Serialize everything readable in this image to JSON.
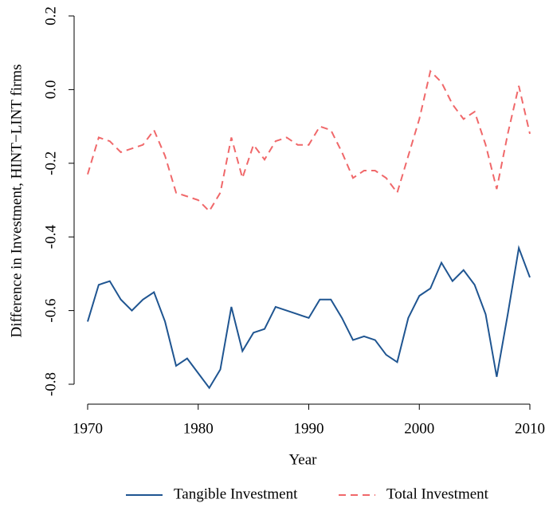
{
  "chart_data": {
    "type": "line",
    "x_label": "Year",
    "y_label": "Difference in Investment, HINT−LINT firms",
    "x": [
      1970,
      1971,
      1972,
      1973,
      1974,
      1975,
      1976,
      1977,
      1978,
      1979,
      1980,
      1981,
      1982,
      1983,
      1984,
      1985,
      1986,
      1987,
      1988,
      1989,
      1990,
      1991,
      1992,
      1993,
      1994,
      1995,
      1996,
      1997,
      1998,
      1999,
      2000,
      2001,
      2002,
      2003,
      2004,
      2005,
      2006,
      2007,
      2008,
      2009,
      2010
    ],
    "series": [
      {
        "name": "Tangible Investment",
        "color": "#1f5591",
        "dash": "solid",
        "values": [
          -0.63,
          -0.53,
          -0.52,
          -0.57,
          -0.6,
          -0.57,
          -0.55,
          -0.63,
          -0.75,
          -0.73,
          -0.77,
          -0.81,
          -0.76,
          -0.59,
          -0.71,
          -0.66,
          -0.65,
          -0.59,
          -0.6,
          -0.61,
          -0.62,
          -0.57,
          -0.57,
          -0.62,
          -0.68,
          -0.67,
          -0.68,
          -0.72,
          -0.74,
          -0.62,
          -0.56,
          -0.54,
          -0.47,
          -0.52,
          -0.49,
          -0.53,
          -0.61,
          -0.78,
          -0.61,
          -0.43,
          -0.51
        ]
      },
      {
        "name": "Total Investment",
        "color": "#f0686a",
        "dash": "dashed",
        "values": [
          -0.23,
          -0.13,
          -0.14,
          -0.17,
          -0.16,
          -0.15,
          -0.11,
          -0.18,
          -0.28,
          -0.29,
          -0.3,
          -0.33,
          -0.28,
          -0.13,
          -0.24,
          -0.15,
          -0.19,
          -0.14,
          -0.13,
          -0.15,
          -0.15,
          -0.1,
          -0.11,
          -0.17,
          -0.24,
          -0.22,
          -0.22,
          -0.24,
          -0.28,
          -0.18,
          -0.08,
          0.05,
          0.02,
          -0.04,
          -0.08,
          -0.06,
          -0.15,
          -0.27,
          -0.12,
          0.01,
          -0.12
        ]
      }
    ],
    "xlim": [
      1970,
      2010
    ],
    "xticks": [
      1970,
      1980,
      1990,
      2000,
      2010
    ],
    "ylim": [
      -0.8,
      0.2
    ],
    "yticks": [
      -0.8,
      -0.6,
      -0.4,
      -0.2,
      {
        "value": 0,
        "label": "0.0"
      },
      0.2
    ],
    "grid": false,
    "legend": "bottom"
  }
}
